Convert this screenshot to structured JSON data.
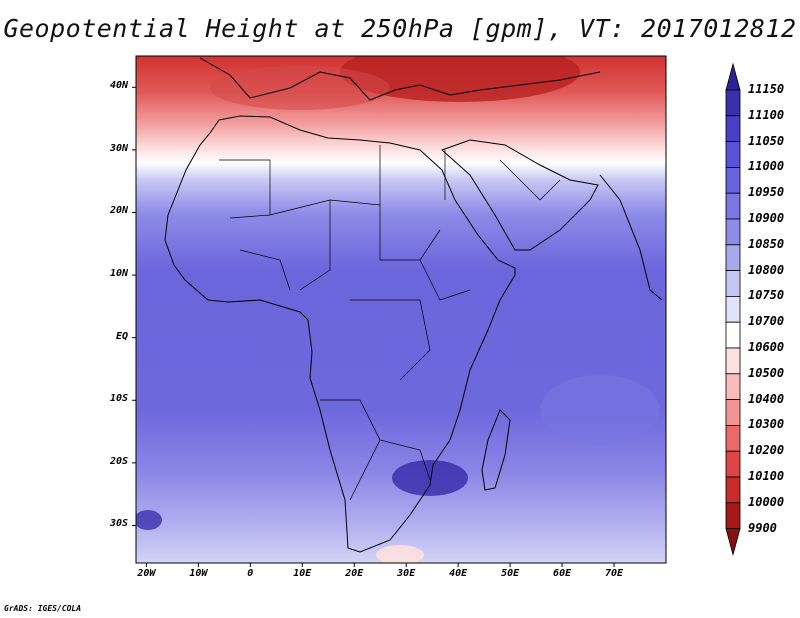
{
  "title": "Geopotential Height at 250hPa [gpm], VT: 2017012812",
  "credit": "GrADS: IGES/COLA",
  "map": {
    "variable": "Geopotential Height",
    "level": "250hPa",
    "units": "gpm",
    "valid_time": "2017012812",
    "lon_range": [
      -22,
      80
    ],
    "lat_range": [
      -36,
      45
    ],
    "lat_ticks": [
      {
        "value": 40,
        "label": "40N"
      },
      {
        "value": 30,
        "label": "30N"
      },
      {
        "value": 20,
        "label": "20N"
      },
      {
        "value": 10,
        "label": "10N"
      },
      {
        "value": 0,
        "label": "EQ"
      },
      {
        "value": -10,
        "label": "10S"
      },
      {
        "value": -20,
        "label": "20S"
      },
      {
        "value": -30,
        "label": "30S"
      }
    ],
    "lon_ticks": [
      {
        "value": -20,
        "label": "20W"
      },
      {
        "value": -10,
        "label": "10W"
      },
      {
        "value": 0,
        "label": "0"
      },
      {
        "value": 10,
        "label": "10E"
      },
      {
        "value": 20,
        "label": "20E"
      },
      {
        "value": 30,
        "label": "30E"
      },
      {
        "value": 40,
        "label": "40E"
      },
      {
        "value": 50,
        "label": "50E"
      },
      {
        "value": 60,
        "label": "60E"
      },
      {
        "value": 70,
        "label": "70E"
      }
    ]
  },
  "colorbar": {
    "levels": [
      "11150",
      "11100",
      "11050",
      "11000",
      "10950",
      "10900",
      "10850",
      "10800",
      "10750",
      "10700",
      "10600",
      "10500",
      "10400",
      "10300",
      "10200",
      "10100",
      "10000",
      "9900"
    ],
    "colors": [
      "#2d2294",
      "#3a30ad",
      "#4a3fc4",
      "#5a52d6",
      "#6a64dc",
      "#7a76e2",
      "#8e8ce8",
      "#a8a8ee",
      "#c6c6f4",
      "#e2e2fa",
      "#ffffff",
      "#fde0e0",
      "#f8bcbc",
      "#f29494",
      "#ea6a6a",
      "#de4444",
      "#c92a2a",
      "#a81818",
      "#8a1010"
    ]
  }
}
